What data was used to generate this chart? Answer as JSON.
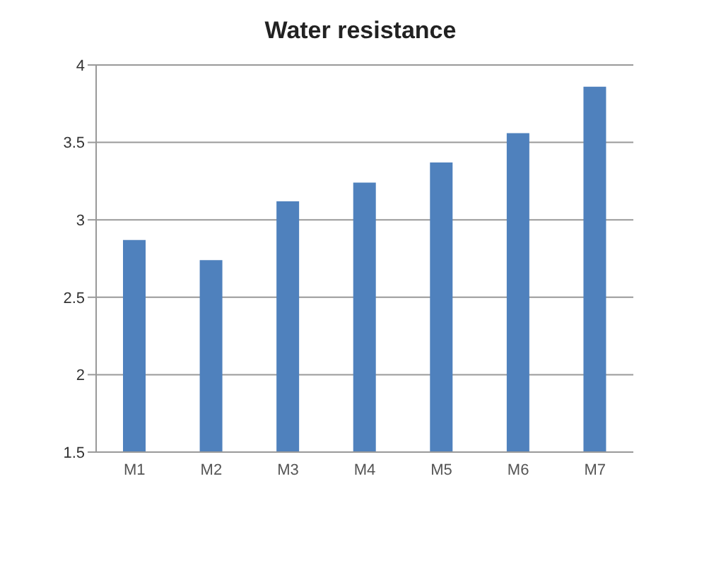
{
  "chart_data": {
    "type": "bar",
    "title": "Water resistance",
    "categories": [
      "M1",
      "M2",
      "M3",
      "M4",
      "M5",
      "M6",
      "M7"
    ],
    "values": [
      2.87,
      2.74,
      3.12,
      3.24,
      3.37,
      3.56,
      3.86
    ],
    "color": "#4f81bd",
    "ylim": [
      1.5,
      4
    ],
    "yticks": [
      1.5,
      2,
      2.5,
      3,
      3.5,
      4
    ],
    "grid": "y"
  }
}
